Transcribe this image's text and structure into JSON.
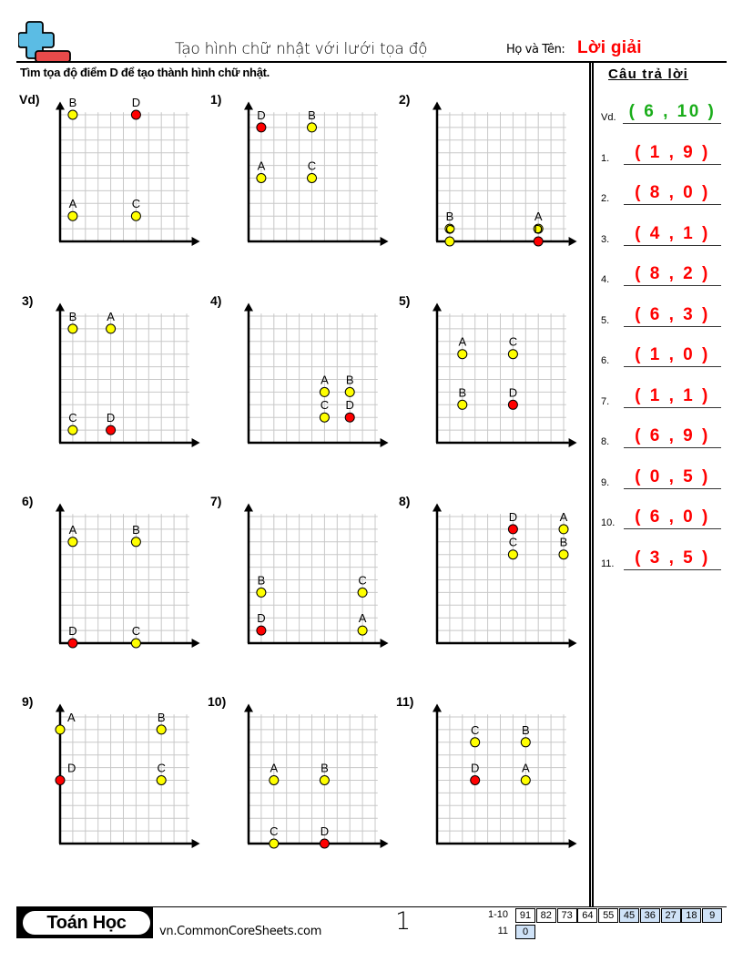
{
  "header": {
    "title": "Tạo hình chữ nhật với lưới tọa độ",
    "name_label": "Họ và Tên:",
    "name_value": "Lời giải",
    "instruction": "Tìm tọa độ điểm D để tạo thành hình chữ nhật."
  },
  "answers": {
    "header": "Câu trả lời",
    "items": [
      {
        "label": "Vd.",
        "value": "( 6 , 10 )",
        "example": true
      },
      {
        "label": "1.",
        "value": "( 1 , 9 )"
      },
      {
        "label": "2.",
        "value": "( 8 , 0 )"
      },
      {
        "label": "3.",
        "value": "( 4 , 1 )"
      },
      {
        "label": "4.",
        "value": "( 8 , 2 )"
      },
      {
        "label": "5.",
        "value": "( 6 , 3 )"
      },
      {
        "label": "6.",
        "value": "( 1 , 0 )"
      },
      {
        "label": "7.",
        "value": "( 1 , 1 )"
      },
      {
        "label": "8.",
        "value": "( 6 , 9 )"
      },
      {
        "label": "9.",
        "value": "( 0 , 5 )"
      },
      {
        "label": "10.",
        "value": "( 6 , 0 )"
      },
      {
        "label": "11.",
        "value": "( 3 , 5 )"
      }
    ]
  },
  "colors": {
    "point_given": "#ffff00",
    "point_answer": "#ff0000",
    "answer_text": "#ff0000",
    "example_text": "#1aad1a",
    "grid": "#c8c8c8",
    "score_highlight": "#cfe2f7"
  },
  "chart_data": [
    {
      "type": "scatter",
      "title": "Vd)",
      "xlim": [
        0,
        10
      ],
      "ylim": [
        0,
        10
      ],
      "grid": true,
      "points": [
        {
          "label": "B",
          "x": 1,
          "y": 10
        },
        {
          "label": "D",
          "x": 6,
          "y": 10,
          "answer": true
        },
        {
          "label": "A",
          "x": 1,
          "y": 2
        },
        {
          "label": "C",
          "x": 6,
          "y": 2
        }
      ]
    },
    {
      "type": "scatter",
      "title": "1)",
      "xlim": [
        0,
        10
      ],
      "ylim": [
        0,
        10
      ],
      "grid": true,
      "points": [
        {
          "label": "D",
          "x": 1,
          "y": 9,
          "answer": true
        },
        {
          "label": "B",
          "x": 5,
          "y": 9
        },
        {
          "label": "A",
          "x": 1,
          "y": 5
        },
        {
          "label": "C",
          "x": 5,
          "y": 5
        }
      ]
    },
    {
      "type": "scatter",
      "title": "2)",
      "xlim": [
        0,
        10
      ],
      "ylim": [
        0,
        10
      ],
      "grid": true,
      "points": [
        {
          "label": "B",
          "x": 1,
          "y": 1
        },
        {
          "label": "C",
          "x": 1,
          "y": 0
        },
        {
          "label": "A",
          "x": 8,
          "y": 1
        },
        {
          "label": "D",
          "x": 8,
          "y": 0,
          "answer": true
        }
      ]
    },
    {
      "type": "scatter",
      "title": "3)",
      "xlim": [
        0,
        10
      ],
      "ylim": [
        0,
        10
      ],
      "grid": true,
      "points": [
        {
          "label": "B",
          "x": 1,
          "y": 9
        },
        {
          "label": "A",
          "x": 4,
          "y": 9
        },
        {
          "label": "C",
          "x": 1,
          "y": 1
        },
        {
          "label": "D",
          "x": 4,
          "y": 1,
          "answer": true
        }
      ]
    },
    {
      "type": "scatter",
      "title": "4)",
      "xlim": [
        0,
        10
      ],
      "ylim": [
        0,
        10
      ],
      "grid": true,
      "points": [
        {
          "label": "A",
          "x": 6,
          "y": 4
        },
        {
          "label": "B",
          "x": 8,
          "y": 4
        },
        {
          "label": "C",
          "x": 6,
          "y": 2
        },
        {
          "label": "D",
          "x": 8,
          "y": 2,
          "answer": true
        }
      ]
    },
    {
      "type": "scatter",
      "title": "5)",
      "xlim": [
        0,
        10
      ],
      "ylim": [
        0,
        10
      ],
      "grid": true,
      "points": [
        {
          "label": "A",
          "x": 2,
          "y": 7
        },
        {
          "label": "C",
          "x": 6,
          "y": 7
        },
        {
          "label": "B",
          "x": 2,
          "y": 3
        },
        {
          "label": "D",
          "x": 6,
          "y": 3,
          "answer": true
        }
      ]
    },
    {
      "type": "scatter",
      "title": "6)",
      "xlim": [
        0,
        10
      ],
      "ylim": [
        0,
        10
      ],
      "grid": true,
      "points": [
        {
          "label": "A",
          "x": 1,
          "y": 8
        },
        {
          "label": "B",
          "x": 6,
          "y": 8
        },
        {
          "label": "D",
          "x": 1,
          "y": 0,
          "answer": true
        },
        {
          "label": "C",
          "x": 6,
          "y": 0
        }
      ]
    },
    {
      "type": "scatter",
      "title": "7)",
      "xlim": [
        0,
        10
      ],
      "ylim": [
        0,
        10
      ],
      "grid": true,
      "points": [
        {
          "label": "B",
          "x": 1,
          "y": 4
        },
        {
          "label": "C",
          "x": 9,
          "y": 4
        },
        {
          "label": "D",
          "x": 1,
          "y": 1,
          "answer": true
        },
        {
          "label": "A",
          "x": 9,
          "y": 1
        }
      ]
    },
    {
      "type": "scatter",
      "title": "8)",
      "xlim": [
        0,
        10
      ],
      "ylim": [
        0,
        10
      ],
      "grid": true,
      "points": [
        {
          "label": "D",
          "x": 6,
          "y": 9,
          "answer": true
        },
        {
          "label": "A",
          "x": 10,
          "y": 9
        },
        {
          "label": "C",
          "x": 6,
          "y": 7
        },
        {
          "label": "B",
          "x": 10,
          "y": 7
        }
      ]
    },
    {
      "type": "scatter",
      "title": "9)",
      "xlim": [
        0,
        10
      ],
      "ylim": [
        0,
        10
      ],
      "grid": true,
      "points": [
        {
          "label": "A",
          "x": 0,
          "y": 9
        },
        {
          "label": "B",
          "x": 8,
          "y": 9
        },
        {
          "label": "D",
          "x": 0,
          "y": 5,
          "answer": true
        },
        {
          "label": "C",
          "x": 8,
          "y": 5
        }
      ]
    },
    {
      "type": "scatter",
      "title": "10)",
      "xlim": [
        0,
        10
      ],
      "ylim": [
        0,
        10
      ],
      "grid": true,
      "points": [
        {
          "label": "A",
          "x": 2,
          "y": 5
        },
        {
          "label": "B",
          "x": 6,
          "y": 5
        },
        {
          "label": "C",
          "x": 2,
          "y": 0
        },
        {
          "label": "D",
          "x": 6,
          "y": 0,
          "answer": true
        }
      ]
    },
    {
      "type": "scatter",
      "title": "11)",
      "xlim": [
        0,
        10
      ],
      "ylim": [
        0,
        10
      ],
      "grid": true,
      "points": [
        {
          "label": "C",
          "x": 3,
          "y": 8
        },
        {
          "label": "B",
          "x": 7,
          "y": 8
        },
        {
          "label": "D",
          "x": 3,
          "y": 5,
          "answer": true
        },
        {
          "label": "A",
          "x": 7,
          "y": 5
        }
      ]
    }
  ],
  "footer": {
    "brand": "Toán Học",
    "site": "vn.CommonCoreSheets.com",
    "page": "1",
    "score_rows": [
      {
        "label": "1-10",
        "cells": [
          {
            "v": "91",
            "blue": false
          },
          {
            "v": "82",
            "blue": false
          },
          {
            "v": "73",
            "blue": false
          },
          {
            "v": "64",
            "blue": false
          },
          {
            "v": "55",
            "blue": false
          },
          {
            "v": "45",
            "blue": true
          },
          {
            "v": "36",
            "blue": true
          },
          {
            "v": "27",
            "blue": true
          },
          {
            "v": "18",
            "blue": true
          },
          {
            "v": "9",
            "blue": true
          }
        ]
      },
      {
        "label": "11",
        "cells": [
          {
            "v": "0",
            "blue": true
          }
        ]
      }
    ]
  }
}
